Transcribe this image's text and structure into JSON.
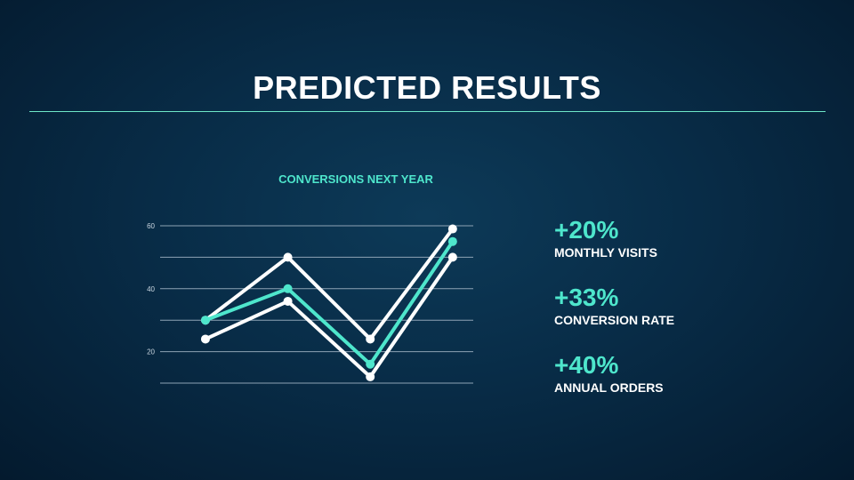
{
  "slide": {
    "title": "PREDICTED RESULTS"
  },
  "stats": [
    {
      "value": "+20%",
      "label": "MONTHLY VISITS"
    },
    {
      "value": "+33%",
      "label": "CONVERSION RATE"
    },
    {
      "value": "+40%",
      "label": "ANNUAL ORDERS"
    }
  ],
  "colors": {
    "accent": "#4ee6cc",
    "line_white": "#ffffff",
    "grid": "#8ea3b5"
  },
  "chart_data": {
    "type": "line",
    "title": "CONVERSIONS NEXT YEAR",
    "xlabel": "",
    "ylabel": "",
    "x": [
      1,
      2,
      3,
      4
    ],
    "ylim": [
      10,
      60
    ],
    "yticks": [
      20,
      40,
      60
    ],
    "grid": true,
    "legend": "none",
    "series": [
      {
        "values": [
          30,
          50,
          24,
          59
        ],
        "color": "#ffffff"
      },
      {
        "values": [
          24,
          36,
          12,
          50
        ],
        "color": "#ffffff"
      },
      {
        "values": [
          30,
          40,
          16,
          55
        ],
        "color": "#4ee6cc"
      }
    ]
  }
}
